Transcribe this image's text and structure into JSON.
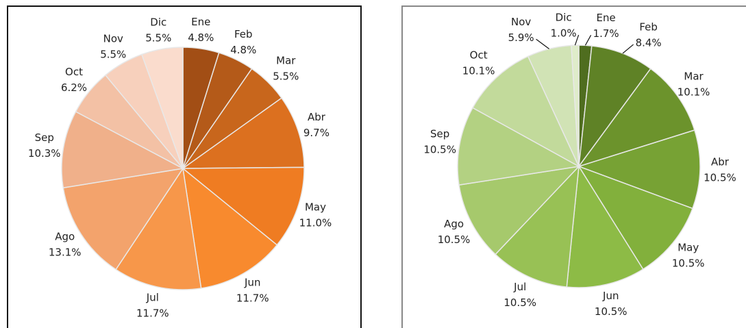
{
  "chart_data": [
    {
      "type": "pie",
      "categories": [
        "Ene",
        "Feb",
        "Mar",
        "Abr",
        "May",
        "Jun",
        "Jul",
        "Ago",
        "Sep",
        "Oct",
        "Nov",
        "Dic"
      ],
      "values": [
        4.8,
        4.8,
        5.5,
        9.7,
        11,
        11.7,
        11.7,
        13.1,
        10.3,
        6.2,
        5.5,
        5.5
      ],
      "value_labels": [
        "4.8%",
        "4.8%",
        "5.5%",
        "9.7%",
        "11.0%",
        "11.7%",
        "11.7%",
        "13.1%",
        "10.3%",
        "6.2%",
        "5.5%",
        "5.5%"
      ],
      "colors": [
        "#a24e15",
        "#b45a19",
        "#c8661c",
        "#dc701f",
        "#ef7c22",
        "#f88a2e",
        "#f7974a",
        "#f3a36c",
        "#f0b08a",
        "#f3c1a5",
        "#f7d0bc",
        "#fadccd"
      ]
    },
    {
      "type": "pie",
      "categories": [
        "Ene",
        "Feb",
        "Mar",
        "Abr",
        "May",
        "Jun",
        "Jul",
        "Ago",
        "Sep",
        "Oct",
        "Nov",
        "Dic"
      ],
      "values": [
        1.7,
        8.4,
        10.1,
        10.5,
        10.5,
        10.5,
        10.5,
        10.5,
        10.5,
        10.1,
        5.9,
        1
      ],
      "value_labels": [
        "1.7%",
        "8.4%",
        "10.1%",
        "10.5%",
        "10.5%",
        "10.5%",
        "10.5%",
        "10.5%",
        "10.5%",
        "10.1%",
        "5.9%",
        "1.0%"
      ],
      "colors": [
        "#4f6d1f",
        "#5f8226",
        "#6c932c",
        "#77a234",
        "#82b03c",
        "#8dbb46",
        "#98c155",
        "#a6c96c",
        "#b3d182",
        "#c2da9b",
        "#d1e3b5",
        "#dfecca"
      ]
    }
  ]
}
